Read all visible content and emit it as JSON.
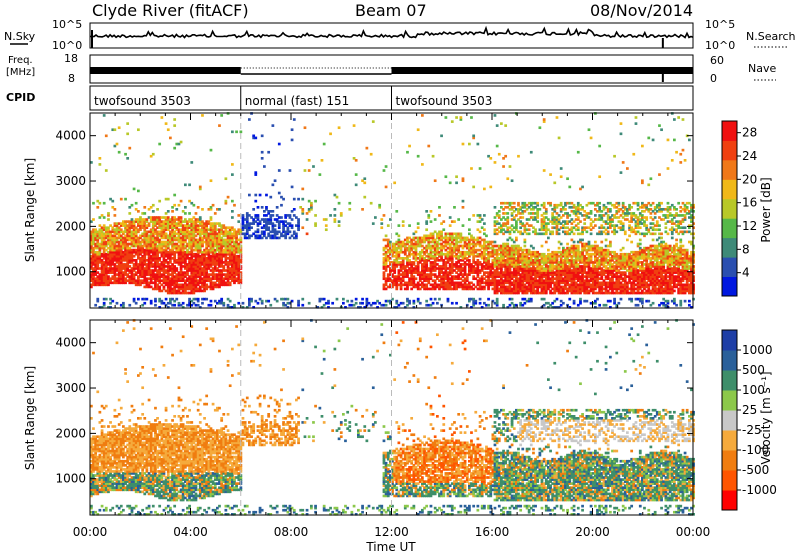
{
  "header": {
    "station": "Clyde River (fitACF)",
    "beam": "Beam 07",
    "date": "08/Nov/2014"
  },
  "noise_panel": {
    "left_label": "N.Sky",
    "right_label": "N.Search",
    "ticks": [
      "10^5",
      "10^0"
    ]
  },
  "freq_panel": {
    "left_label_1": "Freq.",
    "left_label_2": "[MHz]",
    "left_ticks": [
      "18",
      "8"
    ],
    "right_ticks": [
      "60",
      "0"
    ],
    "right_label": "Nave"
  },
  "cpid_panel": {
    "label": "CPID",
    "segments": [
      {
        "name": "twofsound 3503",
        "start_hour": 0,
        "end_hour": 6
      },
      {
        "name": "normal (fast) 151",
        "start_hour": 6,
        "end_hour": 12
      },
      {
        "name": "twofsound 3503",
        "start_hour": 12,
        "end_hour": 24
      }
    ]
  },
  "colors": {
    "power_scale": [
      "#0018e0",
      "#2a4fb0",
      "#3e8a78",
      "#56b848",
      "#b8c828",
      "#f0b818",
      "#f07818",
      "#f04010",
      "#f01010"
    ],
    "velocity_scale": [
      "#ff0000",
      "#ff5500",
      "#f07d10",
      "#f5aa3c",
      "#c8c8c8",
      "#8cc84a",
      "#3e8e6a",
      "#2a609a",
      "#1e3ea6"
    ]
  },
  "chart_data": [
    {
      "type": "heatmap",
      "name": "power",
      "xlabel": "",
      "ylabel": "Slant Range [km]",
      "x_range_hours": [
        0,
        24
      ],
      "ylim": [
        200,
        4500
      ],
      "y_ticks": [
        1000,
        2000,
        3000,
        4000
      ],
      "colorbar": {
        "label": "Power [dB]",
        "ticks": [
          4,
          8,
          12,
          16,
          20,
          24,
          28
        ],
        "range": [
          0,
          30
        ]
      }
    },
    {
      "type": "heatmap",
      "name": "velocity",
      "xlabel": "Time UT",
      "ylabel": "Slant Range [km]",
      "x_range_hours": [
        0,
        24
      ],
      "x_ticks": [
        "00:00",
        "04:00",
        "08:00",
        "12:00",
        "16:00",
        "20:00",
        "00:00"
      ],
      "ylim": [
        200,
        4500
      ],
      "y_ticks": [
        1000,
        2000,
        3000,
        4000
      ],
      "colorbar": {
        "label": "Velocity [m s⁻¹]",
        "ticks": [
          "-1000",
          "-500",
          "-100",
          "-25",
          "25",
          "100",
          "500",
          "1000"
        ]
      }
    }
  ]
}
